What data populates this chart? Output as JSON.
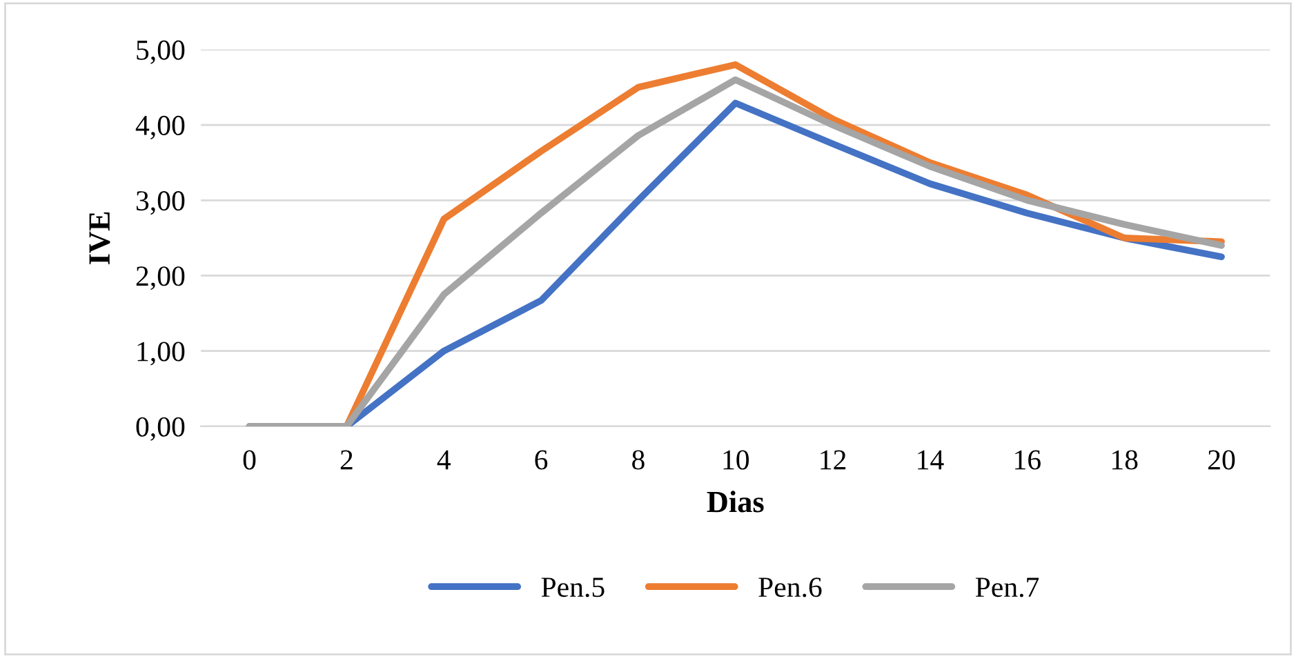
{
  "chart_data": {
    "type": "line",
    "xlabel": "Dias",
    "ylabel": "IVE",
    "categories": [
      "0",
      "2",
      "4",
      "6",
      "8",
      "10",
      "12",
      "14",
      "16",
      "18",
      "20"
    ],
    "series": [
      {
        "name": "Pen.5",
        "color": "#4472c4",
        "values": [
          0,
          0,
          1.0,
          1.67,
          3.0,
          4.29,
          3.75,
          3.22,
          2.83,
          2.5,
          2.25
        ]
      },
      {
        "name": "Pen.6",
        "color": "#ed7d31",
        "values": [
          0,
          0,
          2.75,
          3.65,
          4.5,
          4.8,
          4.08,
          3.5,
          3.07,
          2.5,
          2.45
        ]
      },
      {
        "name": "Pen.7",
        "color": "#a5a5a5",
        "values": [
          0,
          0,
          1.75,
          2.83,
          3.86,
          4.6,
          4.0,
          3.45,
          3.0,
          2.68,
          2.4
        ]
      }
    ],
    "ylim": [
      0,
      5
    ],
    "yticks": [
      {
        "value": 0,
        "label": "0,00"
      },
      {
        "value": 1,
        "label": "1,00"
      },
      {
        "value": 2,
        "label": "2,00"
      },
      {
        "value": 3,
        "label": "3,00"
      },
      {
        "value": 4,
        "label": "4,00"
      },
      {
        "value": 5,
        "label": "5,00"
      }
    ],
    "grid": "y",
    "legend": "bottom",
    "marker": "none",
    "line_style": "solid"
  }
}
